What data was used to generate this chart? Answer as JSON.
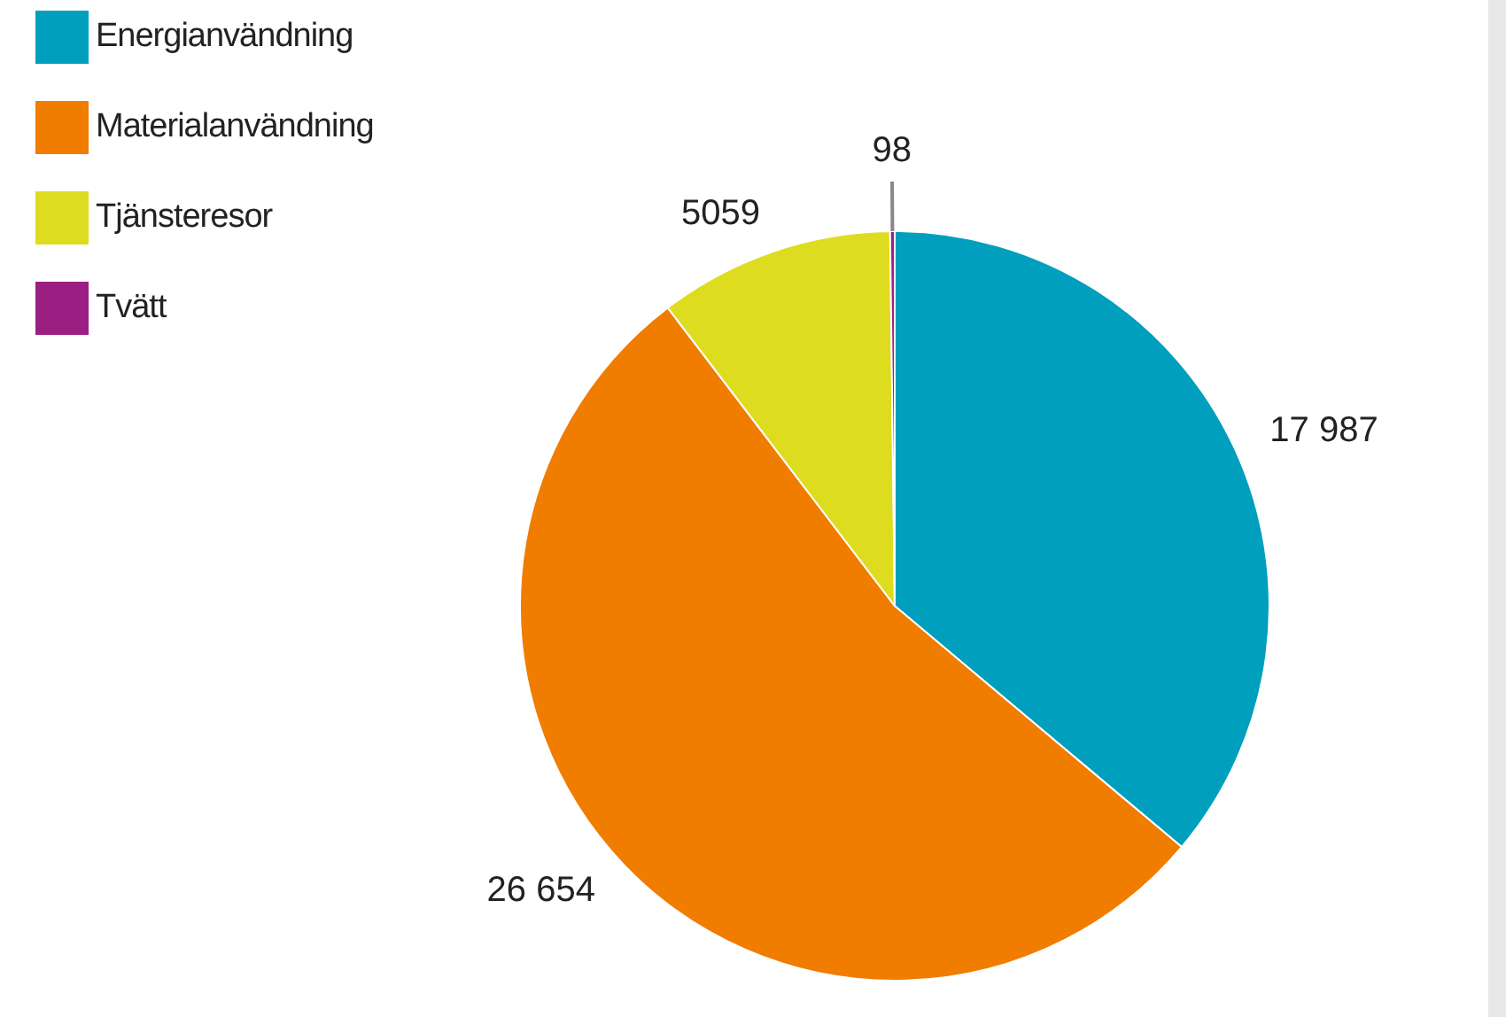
{
  "chart_data": {
    "type": "pie",
    "categories": [
      "Energianvändning",
      "Materialanvändning",
      "Tjänsteresor",
      "Tvätt"
    ],
    "values": [
      17987,
      26654,
      5059,
      98
    ],
    "colors": [
      "#009fbd",
      "#f07c00",
      "#dedc1f",
      "#9b1f82"
    ],
    "value_labels": [
      "17 987",
      "26 654",
      "5059",
      "98"
    ],
    "legend": "top left"
  }
}
